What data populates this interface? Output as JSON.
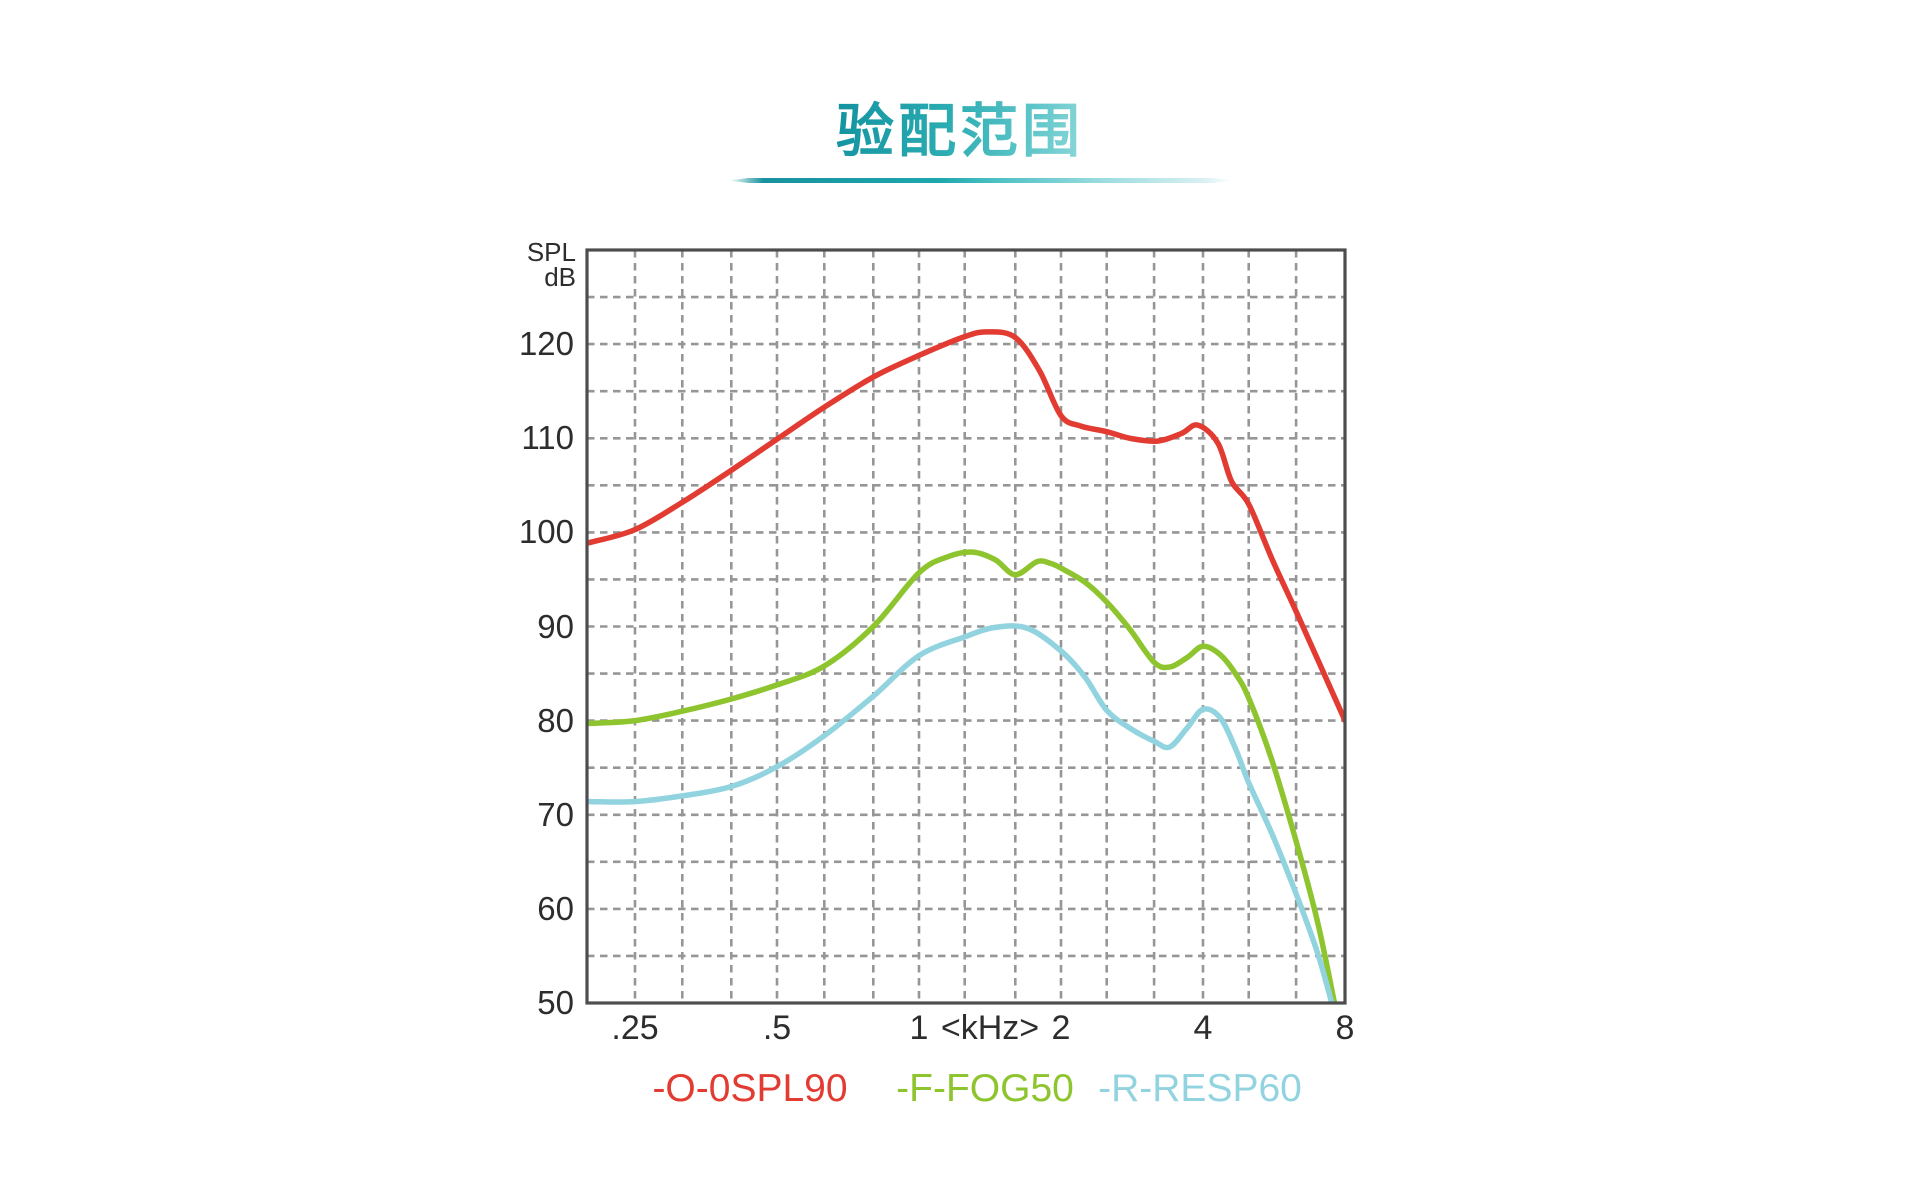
{
  "title": {
    "text": "验配范围",
    "color_start": "#13929f",
    "color_end": "#8fd8da"
  },
  "axis": {
    "y_unit_line1": "SPL",
    "y_unit_line2": "dB",
    "x_unit": "<kHz>"
  },
  "legend": [
    {
      "label": "-O-0SPL90",
      "color": "#e23b32"
    },
    {
      "label": "-F-FOG50",
      "color": "#8ec52f"
    },
    {
      "label": "-R-RESP60",
      "color": "#92d3e0"
    }
  ],
  "grid": {
    "border_color": "#4d4d4d",
    "line_color": "#969696",
    "dash": [
      7.5,
      5.5
    ],
    "plot_background": "#ffffff"
  },
  "chart_data": {
    "type": "line",
    "title": "验配范围",
    "x_axis": {
      "unit": "kHz",
      "scale": "log2",
      "range_khz": [
        0.2,
        8
      ],
      "ticks": [
        {
          "label": ".25",
          "khz": 0.25
        },
        {
          "label": ".5",
          "khz": 0.5
        },
        {
          "label": "1",
          "khz": 1
        },
        {
          "label": "2",
          "khz": 2
        },
        {
          "label": "4",
          "khz": 4
        },
        {
          "label": "8",
          "khz": 8
        }
      ],
      "gridlines_khz": [
        0.25,
        0.315,
        0.4,
        0.5,
        0.63,
        0.8,
        1,
        1.25,
        1.6,
        2,
        2.5,
        3.15,
        4,
        5,
        6.3
      ]
    },
    "y_axis": {
      "label": "SPL dB",
      "range_db": [
        50,
        130
      ],
      "ticks": [
        120,
        110,
        100,
        90,
        80,
        70,
        60,
        50
      ],
      "gridline_step_db": 5
    },
    "grid_on": true,
    "legend_position": "bottom",
    "series": [
      {
        "name": "-O-0SPL90",
        "color": "#e23b32",
        "points_khz_db": [
          [
            0.2,
            98.9
          ],
          [
            0.25,
            100.3
          ],
          [
            0.315,
            103.2
          ],
          [
            0.4,
            106.6
          ],
          [
            0.5,
            109.9
          ],
          [
            0.63,
            113.3
          ],
          [
            0.8,
            116.5
          ],
          [
            1.0,
            118.8
          ],
          [
            1.25,
            120.8
          ],
          [
            1.4,
            121.3
          ],
          [
            1.6,
            120.7
          ],
          [
            1.8,
            117.2
          ],
          [
            2.0,
            112.4
          ],
          [
            2.2,
            111.3
          ],
          [
            2.5,
            110.7
          ],
          [
            2.8,
            110.0
          ],
          [
            3.2,
            109.7
          ],
          [
            3.6,
            110.5
          ],
          [
            3.9,
            111.4
          ],
          [
            4.3,
            109.5
          ],
          [
            4.6,
            105.4
          ],
          [
            5.0,
            103.0
          ],
          [
            5.6,
            97.2
          ],
          [
            6.3,
            91.6
          ],
          [
            7.1,
            85.8
          ],
          [
            8.0,
            80.0
          ]
        ]
      },
      {
        "name": "-F-FOG50",
        "color": "#8ec52f",
        "points_khz_db": [
          [
            0.2,
            79.7
          ],
          [
            0.25,
            80.0
          ],
          [
            0.315,
            81.0
          ],
          [
            0.4,
            82.3
          ],
          [
            0.5,
            83.8
          ],
          [
            0.63,
            85.8
          ],
          [
            0.8,
            90.0
          ],
          [
            1.0,
            95.7
          ],
          [
            1.15,
            97.4
          ],
          [
            1.3,
            97.9
          ],
          [
            1.45,
            97.1
          ],
          [
            1.6,
            95.5
          ],
          [
            1.78,
            96.9
          ],
          [
            1.9,
            96.7
          ],
          [
            2.0,
            96.2
          ],
          [
            2.25,
            94.7
          ],
          [
            2.5,
            92.6
          ],
          [
            2.8,
            89.7
          ],
          [
            3.15,
            86.2
          ],
          [
            3.4,
            85.7
          ],
          [
            3.7,
            86.7
          ],
          [
            4.0,
            87.9
          ],
          [
            4.35,
            87.0
          ],
          [
            4.7,
            84.9
          ],
          [
            5.0,
            82.4
          ],
          [
            5.6,
            75.8
          ],
          [
            6.3,
            67.2
          ],
          [
            7.0,
            58.6
          ],
          [
            7.6,
            50.0
          ]
        ]
      },
      {
        "name": "-R-RESP60",
        "color": "#92d3e0",
        "points_khz_db": [
          [
            0.2,
            71.4
          ],
          [
            0.25,
            71.4
          ],
          [
            0.315,
            72.0
          ],
          [
            0.4,
            73.0
          ],
          [
            0.5,
            75.1
          ],
          [
            0.63,
            78.4
          ],
          [
            0.8,
            82.6
          ],
          [
            1.0,
            86.9
          ],
          [
            1.25,
            88.9
          ],
          [
            1.45,
            89.9
          ],
          [
            1.7,
            89.8
          ],
          [
            2.0,
            87.4
          ],
          [
            2.25,
            84.6
          ],
          [
            2.5,
            81.1
          ],
          [
            2.8,
            79.2
          ],
          [
            3.15,
            77.8
          ],
          [
            3.4,
            77.2
          ],
          [
            3.7,
            79.2
          ],
          [
            4.0,
            81.2
          ],
          [
            4.35,
            80.3
          ],
          [
            4.7,
            76.9
          ],
          [
            5.0,
            73.4
          ],
          [
            5.6,
            68.0
          ],
          [
            6.3,
            61.6
          ],
          [
            7.0,
            55.3
          ],
          [
            7.5,
            50.0
          ]
        ]
      }
    ]
  }
}
